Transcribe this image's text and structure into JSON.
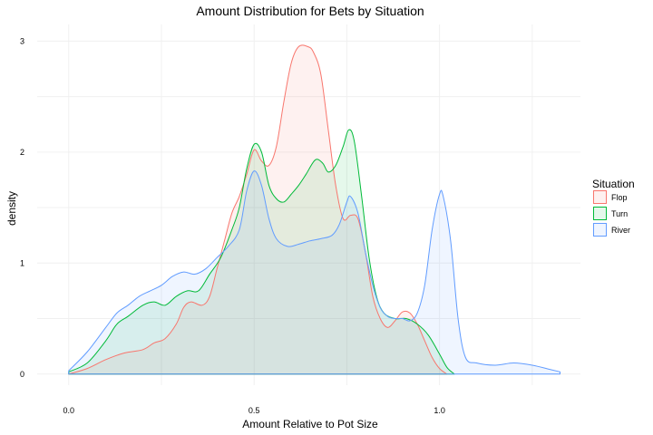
{
  "chart_data": {
    "type": "area",
    "title": "Amount Distribution for Bets by Situation",
    "xlabel": "Amount Relative to Pot Size",
    "ylabel": "density",
    "xlim": [
      -0.085,
      1.38
    ],
    "ylim": [
      -0.1,
      3.15
    ],
    "x_ticks": [
      0.0,
      0.5,
      1.0
    ],
    "x_tick_labels": [
      "0.0",
      "0.5",
      "1.0"
    ],
    "y_ticks": [
      0,
      1,
      2,
      3
    ],
    "y_tick_labels": [
      "0",
      "1",
      "2",
      "3"
    ],
    "grid": true,
    "legend": {
      "title": "Situation",
      "position": "right"
    },
    "series": [
      {
        "name": "Flop",
        "stroke": "#F8766D",
        "fill": "#F8766D",
        "points": [
          [
            0.0,
            0.0
          ],
          [
            0.05,
            0.05
          ],
          [
            0.1,
            0.13
          ],
          [
            0.15,
            0.19
          ],
          [
            0.2,
            0.22
          ],
          [
            0.23,
            0.28
          ],
          [
            0.26,
            0.32
          ],
          [
            0.29,
            0.45
          ],
          [
            0.31,
            0.6
          ],
          [
            0.33,
            0.65
          ],
          [
            0.36,
            0.62
          ],
          [
            0.38,
            0.7
          ],
          [
            0.4,
            0.95
          ],
          [
            0.42,
            1.2
          ],
          [
            0.44,
            1.45
          ],
          [
            0.46,
            1.6
          ],
          [
            0.48,
            1.8
          ],
          [
            0.5,
            2.02
          ],
          [
            0.52,
            1.92
          ],
          [
            0.54,
            1.88
          ],
          [
            0.56,
            2.05
          ],
          [
            0.58,
            2.45
          ],
          [
            0.6,
            2.8
          ],
          [
            0.62,
            2.95
          ],
          [
            0.645,
            2.95
          ],
          [
            0.66,
            2.9
          ],
          [
            0.68,
            2.7
          ],
          [
            0.7,
            2.2
          ],
          [
            0.72,
            1.7
          ],
          [
            0.74,
            1.4
          ],
          [
            0.76,
            1.43
          ],
          [
            0.78,
            1.4
          ],
          [
            0.8,
            1.1
          ],
          [
            0.82,
            0.7
          ],
          [
            0.84,
            0.5
          ],
          [
            0.86,
            0.42
          ],
          [
            0.88,
            0.48
          ],
          [
            0.9,
            0.56
          ],
          [
            0.92,
            0.55
          ],
          [
            0.94,
            0.45
          ],
          [
            0.96,
            0.3
          ],
          [
            0.98,
            0.15
          ],
          [
            1.0,
            0.05
          ],
          [
            1.02,
            0.0
          ]
        ]
      },
      {
        "name": "Turn",
        "stroke": "#00BA38",
        "fill": "#00BA38",
        "points": [
          [
            0.0,
            0.02
          ],
          [
            0.05,
            0.1
          ],
          [
            0.1,
            0.3
          ],
          [
            0.13,
            0.45
          ],
          [
            0.16,
            0.52
          ],
          [
            0.2,
            0.62
          ],
          [
            0.23,
            0.65
          ],
          [
            0.26,
            0.62
          ],
          [
            0.29,
            0.7
          ],
          [
            0.32,
            0.75
          ],
          [
            0.35,
            0.75
          ],
          [
            0.38,
            0.9
          ],
          [
            0.41,
            1.05
          ],
          [
            0.44,
            1.3
          ],
          [
            0.46,
            1.5
          ],
          [
            0.48,
            1.85
          ],
          [
            0.5,
            2.07
          ],
          [
            0.52,
            2.0
          ],
          [
            0.54,
            1.7
          ],
          [
            0.56,
            1.58
          ],
          [
            0.58,
            1.55
          ],
          [
            0.6,
            1.62
          ],
          [
            0.62,
            1.7
          ],
          [
            0.64,
            1.8
          ],
          [
            0.665,
            1.93
          ],
          [
            0.685,
            1.9
          ],
          [
            0.7,
            1.82
          ],
          [
            0.72,
            1.88
          ],
          [
            0.74,
            2.05
          ],
          [
            0.755,
            2.2
          ],
          [
            0.77,
            2.1
          ],
          [
            0.79,
            1.6
          ],
          [
            0.81,
            1.05
          ],
          [
            0.83,
            0.7
          ],
          [
            0.85,
            0.55
          ],
          [
            0.88,
            0.5
          ],
          [
            0.91,
            0.5
          ],
          [
            0.94,
            0.45
          ],
          [
            0.97,
            0.35
          ],
          [
            1.0,
            0.18
          ],
          [
            1.02,
            0.06
          ],
          [
            1.04,
            0.0
          ]
        ]
      },
      {
        "name": "River",
        "stroke": "#619CFF",
        "fill": "#619CFF",
        "points": [
          [
            0.0,
            0.03
          ],
          [
            0.05,
            0.2
          ],
          [
            0.1,
            0.42
          ],
          [
            0.13,
            0.55
          ],
          [
            0.16,
            0.62
          ],
          [
            0.19,
            0.7
          ],
          [
            0.22,
            0.75
          ],
          [
            0.25,
            0.8
          ],
          [
            0.28,
            0.88
          ],
          [
            0.31,
            0.92
          ],
          [
            0.34,
            0.9
          ],
          [
            0.37,
            0.95
          ],
          [
            0.4,
            1.05
          ],
          [
            0.43,
            1.15
          ],
          [
            0.46,
            1.3
          ],
          [
            0.48,
            1.65
          ],
          [
            0.5,
            1.83
          ],
          [
            0.52,
            1.7
          ],
          [
            0.54,
            1.4
          ],
          [
            0.56,
            1.22
          ],
          [
            0.59,
            1.15
          ],
          [
            0.62,
            1.17
          ],
          [
            0.65,
            1.2
          ],
          [
            0.68,
            1.22
          ],
          [
            0.71,
            1.25
          ],
          [
            0.73,
            1.35
          ],
          [
            0.75,
            1.55
          ],
          [
            0.76,
            1.6
          ],
          [
            0.78,
            1.45
          ],
          [
            0.8,
            1.1
          ],
          [
            0.82,
            0.8
          ],
          [
            0.84,
            0.6
          ],
          [
            0.86,
            0.52
          ],
          [
            0.88,
            0.5
          ],
          [
            0.9,
            0.5
          ],
          [
            0.92,
            0.48
          ],
          [
            0.94,
            0.55
          ],
          [
            0.96,
            0.8
          ],
          [
            0.98,
            1.3
          ],
          [
            1.0,
            1.62
          ],
          [
            1.01,
            1.6
          ],
          [
            1.03,
            1.2
          ],
          [
            1.05,
            0.5
          ],
          [
            1.07,
            0.15
          ],
          [
            1.1,
            0.1
          ],
          [
            1.15,
            0.08
          ],
          [
            1.2,
            0.1
          ],
          [
            1.25,
            0.08
          ],
          [
            1.3,
            0.04
          ],
          [
            1.325,
            0.02
          ]
        ]
      }
    ]
  }
}
